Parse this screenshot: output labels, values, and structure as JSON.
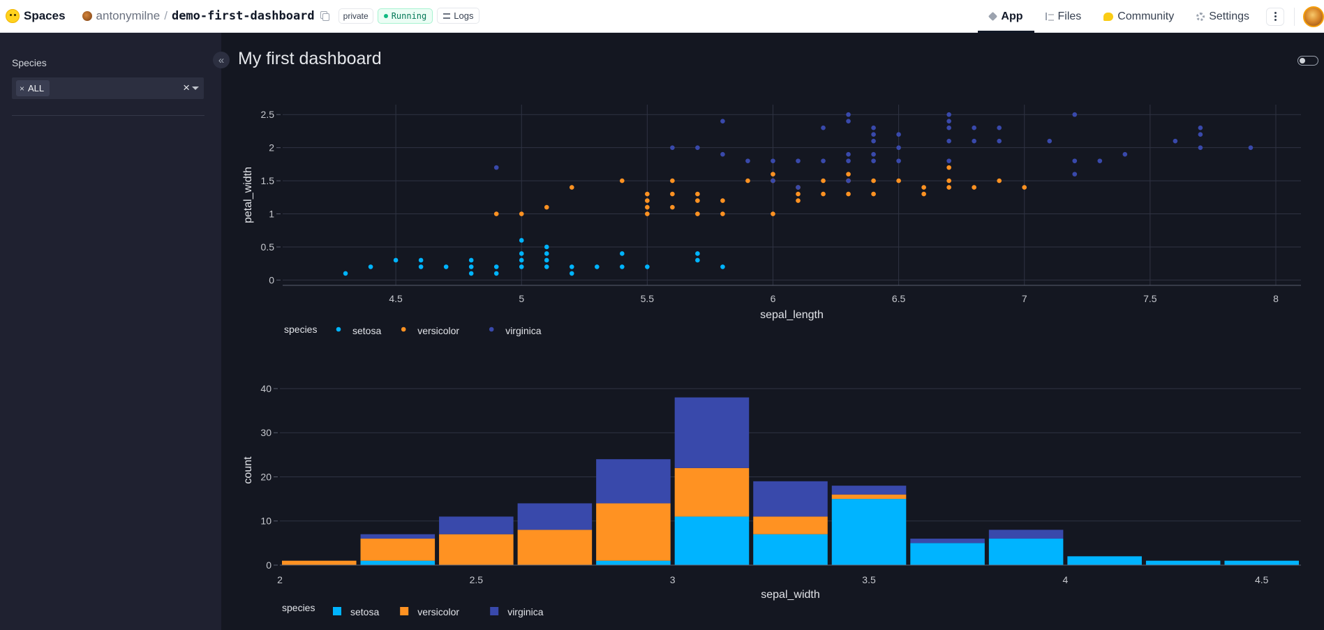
{
  "header": {
    "brand": "Spaces",
    "owner": "antonymilne",
    "separator": "/",
    "repo": "demo-first-dashboard",
    "visibility": "private",
    "status": "Running",
    "logs_label": "Logs",
    "tabs": [
      {
        "label": "App",
        "icon": "app-icon",
        "active": true
      },
      {
        "label": "Files",
        "icon": "files-icon",
        "active": false
      },
      {
        "label": "Community",
        "icon": "community-icon",
        "active": false
      },
      {
        "label": "Settings",
        "icon": "settings-icon",
        "active": false
      }
    ]
  },
  "sidebar": {
    "filter_label": "Species",
    "selected_value": "ALL",
    "chip_remove": "×",
    "clear_symbol": "×"
  },
  "main": {
    "title": "My first dashboard",
    "collapse_symbol": "«"
  },
  "colors": {
    "setosa": "#00b4ff",
    "versicolor": "#ff9222",
    "virginica": "#3949ab",
    "background": "#141721",
    "sidebar": "#1f2130"
  },
  "chart_data": [
    {
      "type": "scatter",
      "xlabel": "sepal_length",
      "ylabel": "petal_width",
      "xlim": [
        4.05,
        8.1
      ],
      "ylim": [
        -0.08,
        2.65
      ],
      "xticks": [
        "4.5",
        "5",
        "5.5",
        "6",
        "6.5",
        "7",
        "7.5",
        "8"
      ],
      "yticks": [
        "0",
        "0.5",
        "1",
        "1.5",
        "2",
        "2.5"
      ],
      "grid": true,
      "legend": {
        "title": "species",
        "placement": "bottom-left"
      },
      "series": [
        {
          "name": "setosa",
          "points": [
            [
              4.3,
              0.1
            ],
            [
              4.4,
              0.2
            ],
            [
              4.5,
              0.3
            ],
            [
              4.6,
              0.2
            ],
            [
              4.6,
              0.3
            ],
            [
              4.7,
              0.2
            ],
            [
              4.8,
              0.1
            ],
            [
              4.8,
              0.2
            ],
            [
              4.8,
              0.3
            ],
            [
              4.9,
              0.1
            ],
            [
              4.9,
              0.2
            ],
            [
              5.0,
              0.2
            ],
            [
              5.0,
              0.3
            ],
            [
              5.0,
              0.4
            ],
            [
              5.0,
              0.6
            ],
            [
              5.1,
              0.2
            ],
            [
              5.1,
              0.3
            ],
            [
              5.1,
              0.4
            ],
            [
              5.1,
              0.5
            ],
            [
              5.2,
              0.1
            ],
            [
              5.2,
              0.2
            ],
            [
              5.3,
              0.2
            ],
            [
              5.4,
              0.2
            ],
            [
              5.4,
              0.4
            ],
            [
              5.5,
              0.2
            ],
            [
              5.7,
              0.3
            ],
            [
              5.7,
              0.4
            ],
            [
              5.8,
              0.2
            ]
          ]
        },
        {
          "name": "versicolor",
          "points": [
            [
              4.9,
              1.0
            ],
            [
              5.0,
              1.0
            ],
            [
              5.1,
              1.1
            ],
            [
              5.2,
              1.4
            ],
            [
              5.4,
              1.5
            ],
            [
              5.5,
              1.0
            ],
            [
              5.5,
              1.1
            ],
            [
              5.5,
              1.2
            ],
            [
              5.5,
              1.3
            ],
            [
              5.6,
              1.1
            ],
            [
              5.6,
              1.3
            ],
            [
              5.6,
              1.5
            ],
            [
              5.7,
              1.0
            ],
            [
              5.7,
              1.2
            ],
            [
              5.7,
              1.3
            ],
            [
              5.8,
              1.0
            ],
            [
              5.8,
              1.2
            ],
            [
              5.9,
              1.5
            ],
            [
              6.0,
              1.0
            ],
            [
              6.0,
              1.5
            ],
            [
              6.0,
              1.6
            ],
            [
              6.1,
              1.2
            ],
            [
              6.1,
              1.3
            ],
            [
              6.1,
              1.4
            ],
            [
              6.2,
              1.3
            ],
            [
              6.2,
              1.5
            ],
            [
              6.3,
              1.3
            ],
            [
              6.3,
              1.5
            ],
            [
              6.3,
              1.6
            ],
            [
              6.4,
              1.3
            ],
            [
              6.4,
              1.5
            ],
            [
              6.5,
              1.5
            ],
            [
              6.6,
              1.3
            ],
            [
              6.6,
              1.4
            ],
            [
              6.7,
              1.4
            ],
            [
              6.7,
              1.5
            ],
            [
              6.7,
              1.7
            ],
            [
              6.8,
              1.4
            ],
            [
              6.9,
              1.5
            ],
            [
              7.0,
              1.4
            ]
          ]
        },
        {
          "name": "virginica",
          "points": [
            [
              4.9,
              1.7
            ],
            [
              5.6,
              2.0
            ],
            [
              5.7,
              2.0
            ],
            [
              5.8,
              1.9
            ],
            [
              5.8,
              2.4
            ],
            [
              5.9,
              1.8
            ],
            [
              6.0,
              1.5
            ],
            [
              6.0,
              1.8
            ],
            [
              6.1,
              1.4
            ],
            [
              6.1,
              1.8
            ],
            [
              6.2,
              1.8
            ],
            [
              6.2,
              2.3
            ],
            [
              6.3,
              1.5
            ],
            [
              6.3,
              1.8
            ],
            [
              6.3,
              1.9
            ],
            [
              6.3,
              2.4
            ],
            [
              6.3,
              2.5
            ],
            [
              6.4,
              1.8
            ],
            [
              6.4,
              1.9
            ],
            [
              6.4,
              2.1
            ],
            [
              6.4,
              2.2
            ],
            [
              6.4,
              2.3
            ],
            [
              6.5,
              1.8
            ],
            [
              6.5,
              2.0
            ],
            [
              6.5,
              2.2
            ],
            [
              6.7,
              1.8
            ],
            [
              6.7,
              2.1
            ],
            [
              6.7,
              2.3
            ],
            [
              6.7,
              2.4
            ],
            [
              6.7,
              2.5
            ],
            [
              6.8,
              2.1
            ],
            [
              6.8,
              2.3
            ],
            [
              6.9,
              2.1
            ],
            [
              6.9,
              2.3
            ],
            [
              7.1,
              2.1
            ],
            [
              7.2,
              1.6
            ],
            [
              7.2,
              1.8
            ],
            [
              7.2,
              2.5
            ],
            [
              7.3,
              1.8
            ],
            [
              7.4,
              1.9
            ],
            [
              7.6,
              2.1
            ],
            [
              7.7,
              2.0
            ],
            [
              7.7,
              2.2
            ],
            [
              7.7,
              2.3
            ],
            [
              7.9,
              2.0
            ]
          ]
        }
      ]
    },
    {
      "type": "bar",
      "stacked": true,
      "xlabel": "sepal_width",
      "ylabel": "count",
      "xlim": [
        2.0,
        4.6
      ],
      "ylim": [
        0,
        43
      ],
      "xticks": [
        "2",
        "2.5",
        "3",
        "3.5",
        "4",
        "4.5"
      ],
      "yticks": [
        "0",
        "10",
        "20",
        "30",
        "40"
      ],
      "grid": true,
      "bin_starts": [
        2.0,
        2.2,
        2.4,
        2.6,
        2.8,
        3.0,
        3.2,
        3.4,
        3.6,
        3.8,
        4.0,
        4.2,
        4.4
      ],
      "bin_width": 0.2,
      "legend": {
        "title": "species",
        "placement": "bottom-left"
      },
      "series": [
        {
          "name": "setosa",
          "values": [
            0,
            1,
            0,
            0,
            1,
            11,
            7,
            15,
            5,
            6,
            2,
            1,
            1
          ]
        },
        {
          "name": "versicolor",
          "values": [
            1,
            5,
            7,
            8,
            13,
            11,
            4,
            1,
            0,
            0,
            0,
            0,
            0
          ]
        },
        {
          "name": "virginica",
          "values": [
            0,
            1,
            4,
            6,
            10,
            16,
            8,
            2,
            1,
            2,
            0,
            0,
            0
          ]
        }
      ]
    }
  ]
}
